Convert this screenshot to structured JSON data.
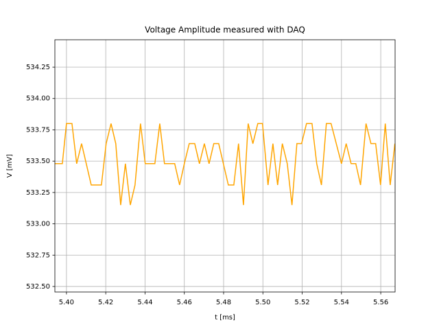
{
  "chart_data": {
    "type": "line",
    "title": "Voltage Amplitude measured with DAQ",
    "xlabel": "t  [ms]",
    "ylabel": "V  [mV]",
    "x": [
      5.3941,
      5.3979,
      5.4,
      5.4028,
      5.4052,
      5.4077,
      5.4126,
      5.4178,
      5.4202,
      5.4227,
      5.4251,
      5.4276,
      5.43,
      5.4325,
      5.4349,
      5.4377,
      5.4401,
      5.445,
      5.4475,
      5.4499,
      5.4551,
      5.4576,
      5.46,
      5.4625,
      5.4653,
      5.4677,
      5.4702,
      5.4726,
      5.475,
      5.4775,
      5.4824,
      5.4852,
      5.4876,
      5.4901,
      5.4925,
      5.4949,
      5.4974,
      5.4998,
      5.5026,
      5.5051,
      5.5075,
      5.5099,
      5.5124,
      5.5148,
      5.5173,
      5.5197,
      5.5222,
      5.525,
      5.5274,
      5.5298,
      5.5323,
      5.5347,
      5.54,
      5.5424,
      5.5449,
      5.5473,
      5.5497,
      5.5525,
      5.555,
      5.5574,
      5.5599,
      5.5623,
      5.5648,
      5.5672
    ],
    "series": [
      {
        "color": "#ffa500",
        "values": [
          533.48,
          533.48,
          533.8,
          533.8,
          533.48,
          533.64,
          533.31,
          533.31,
          533.64,
          533.8,
          533.64,
          533.15,
          533.48,
          533.15,
          533.31,
          533.8,
          533.48,
          533.48,
          533.8,
          533.48,
          533.48,
          533.31,
          533.48,
          533.64,
          533.64,
          533.48,
          533.64,
          533.48,
          533.64,
          533.64,
          533.31,
          533.31,
          533.64,
          533.15,
          533.8,
          533.64,
          533.8,
          533.8,
          533.31,
          533.64,
          533.31,
          533.64,
          533.48,
          533.15,
          533.64,
          533.64,
          533.8,
          533.8,
          533.48,
          533.31,
          533.8,
          533.8,
          533.48,
          533.64,
          533.48,
          533.48,
          533.31,
          533.8,
          533.64,
          533.64,
          533.31,
          533.8,
          533.31,
          533.64
        ]
      }
    ],
    "xlim": [
      5.3941,
      5.5673
    ],
    "ylim": [
      532.456,
      534.469
    ],
    "xticks": [
      {
        "value": 5.4,
        "label": "5.40"
      },
      5.42,
      5.44,
      5.46,
      5.48,
      {
        "value": 5.5,
        "label": "5.50"
      },
      5.52,
      5.54,
      5.56
    ],
    "yticks": [
      {
        "value": 532.5,
        "label": "532.50"
      },
      532.75,
      {
        "value": 533,
        "label": "533.00"
      },
      533.25,
      {
        "value": 533.5,
        "label": "533.50"
      },
      533.75,
      {
        "value": 534,
        "label": "534.00"
      },
      534.25
    ],
    "grid": true
  }
}
